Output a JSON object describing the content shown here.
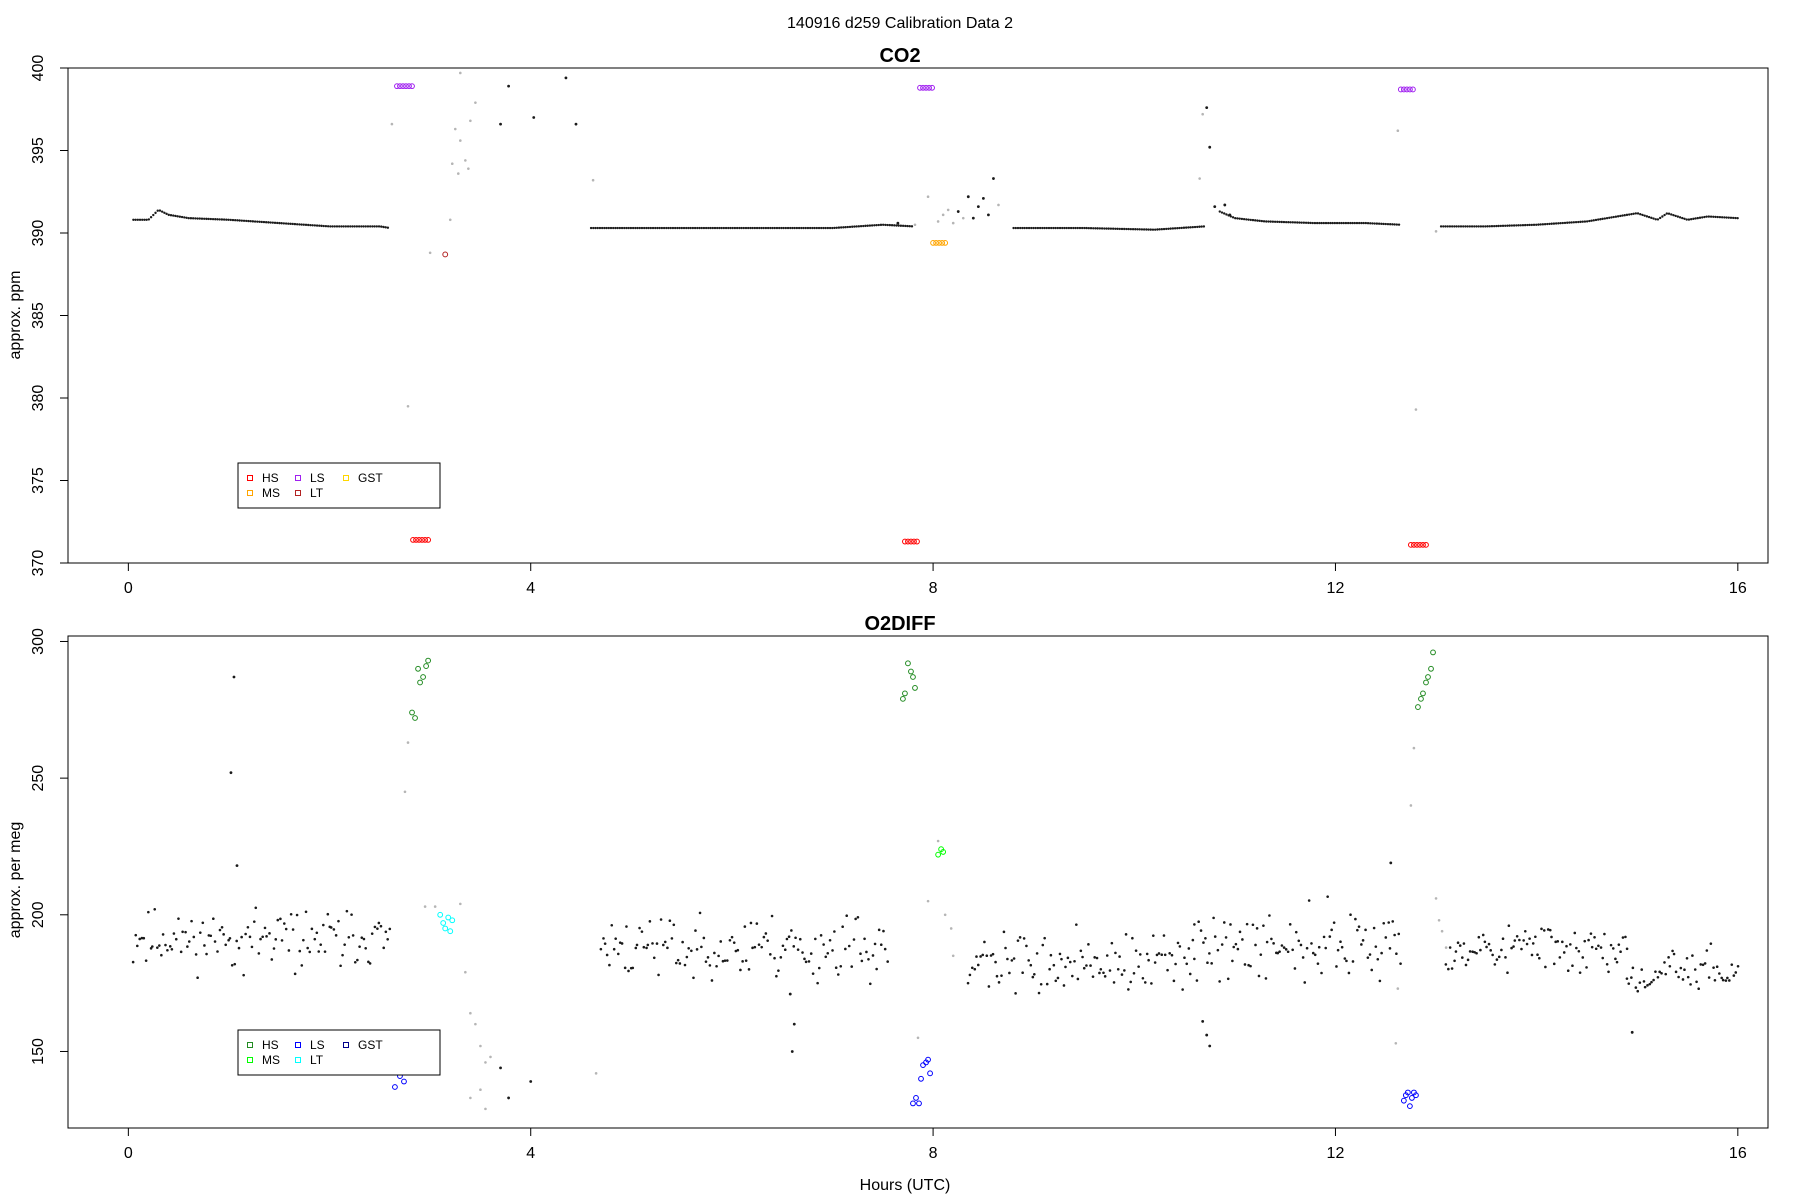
{
  "figure": {
    "title": "140916   d259   Calibration Data 2"
  },
  "chart_data": [
    {
      "type": "scatter",
      "title": "CO2",
      "xlabel": "",
      "ylabel": "approx. ppm",
      "xlim": [
        -0.6,
        16.3
      ],
      "ylim": [
        370,
        400
      ],
      "xticks": [
        0,
        4,
        8,
        12,
        16
      ],
      "yticks": [
        370,
        375,
        380,
        385,
        390,
        395,
        400
      ],
      "legend": {
        "position": "bottom-left",
        "entries": [
          {
            "name": "HS",
            "color": "#ff0000"
          },
          {
            "name": "MS",
            "color": "#ffa500"
          },
          {
            "name": "LS",
            "color": "#a020f0"
          },
          {
            "name": "LT",
            "color": "#b22222"
          },
          {
            "name": "GST",
            "color": "#ffd700"
          }
        ]
      },
      "series": [
        {
          "name": "HS",
          "color": "#ff0000",
          "points": [
            [
              2.83,
              371.4
            ],
            [
              2.86,
              371.4
            ],
            [
              2.89,
              371.4
            ],
            [
              2.92,
              371.4
            ],
            [
              2.95,
              371.4
            ],
            [
              2.98,
              371.4
            ],
            [
              7.72,
              371.3
            ],
            [
              7.75,
              371.3
            ],
            [
              7.78,
              371.3
            ],
            [
              7.81,
              371.3
            ],
            [
              7.84,
              371.3
            ],
            [
              12.75,
              371.1
            ],
            [
              12.78,
              371.1
            ],
            [
              12.81,
              371.1
            ],
            [
              12.84,
              371.1
            ],
            [
              12.87,
              371.1
            ],
            [
              12.9,
              371.1
            ]
          ]
        },
        {
          "name": "LS",
          "color": "#a020f0",
          "points": [
            [
              2.67,
              398.9
            ],
            [
              2.7,
              398.9
            ],
            [
              2.73,
              398.9
            ],
            [
              2.76,
              398.9
            ],
            [
              2.79,
              398.9
            ],
            [
              2.82,
              398.9
            ],
            [
              7.87,
              398.8
            ],
            [
              7.9,
              398.8
            ],
            [
              7.93,
              398.8
            ],
            [
              7.96,
              398.8
            ],
            [
              7.99,
              398.8
            ],
            [
              12.65,
              398.7
            ],
            [
              12.68,
              398.7
            ],
            [
              12.71,
              398.7
            ],
            [
              12.74,
              398.7
            ],
            [
              12.77,
              398.7
            ]
          ]
        },
        {
          "name": "MS",
          "color": "#ffa500",
          "points": [
            [
              8.0,
              389.4
            ],
            [
              8.03,
              389.4
            ],
            [
              8.06,
              389.4
            ],
            [
              8.09,
              389.4
            ],
            [
              8.12,
              389.4
            ]
          ]
        },
        {
          "name": "LT",
          "color": "#b22222",
          "points": [
            [
              3.15,
              388.7
            ]
          ]
        }
      ],
      "baseline_segments": [
        {
          "x": [
            0.05,
            0.2,
            0.3,
            0.4,
            0.6,
            1.0,
            1.5,
            2.0,
            2.5,
            2.6
          ],
          "y": [
            390.8,
            390.8,
            391.4,
            391.1,
            390.9,
            390.8,
            390.6,
            390.4,
            390.4,
            390.3
          ]
        },
        {
          "x": [
            4.6,
            5.5,
            6.5,
            7.0,
            7.5,
            7.8
          ],
          "y": [
            390.3,
            390.3,
            390.3,
            390.3,
            390.5,
            390.4
          ]
        },
        {
          "x": [
            8.8,
            9.5,
            10.2,
            10.7
          ],
          "y": [
            390.3,
            390.3,
            390.2,
            390.4
          ]
        },
        {
          "x": [
            10.85,
            11.0,
            11.3,
            11.8,
            12.3,
            12.65
          ],
          "y": [
            391.3,
            390.9,
            390.7,
            390.6,
            390.6,
            390.5
          ]
        },
        {
          "x": [
            13.05,
            13.5,
            14.0,
            14.5,
            14.8,
            15.0,
            15.2,
            15.3,
            15.5,
            15.7,
            16.0
          ],
          "y": [
            390.4,
            390.4,
            390.5,
            390.7,
            391.0,
            391.2,
            390.8,
            391.2,
            390.8,
            391.0,
            390.9
          ]
        }
      ],
      "black_points": [
        [
          3.78,
          398.9
        ],
        [
          4.35,
          399.4
        ],
        [
          4.03,
          397.0
        ],
        [
          4.45,
          396.6
        ],
        [
          3.7,
          396.6
        ],
        [
          10.72,
          397.6
        ],
        [
          10.75,
          395.2
        ],
        [
          8.6,
          393.3
        ],
        [
          8.5,
          392.1
        ],
        [
          8.35,
          392.2
        ],
        [
          8.45,
          391.6
        ],
        [
          8.55,
          391.1
        ],
        [
          8.25,
          391.3
        ],
        [
          10.8,
          391.6
        ],
        [
          10.9,
          391.7
        ],
        [
          10.95,
          391.1
        ],
        [
          7.65,
          390.6
        ],
        [
          8.4,
          390.9
        ]
      ],
      "gray_points": [
        [
          2.62,
          396.6
        ],
        [
          3.25,
          396.3
        ],
        [
          3.3,
          395.6
        ],
        [
          3.35,
          394.4
        ],
        [
          3.28,
          393.6
        ],
        [
          3.38,
          393.9
        ],
        [
          3.45,
          397.9
        ],
        [
          3.22,
          394.2
        ],
        [
          3.3,
          399.7
        ],
        [
          3.4,
          396.8
        ],
        [
          4.62,
          393.2
        ],
        [
          2.78,
          379.5
        ],
        [
          3.2,
          390.8
        ],
        [
          3.0,
          388.8
        ],
        [
          8.1,
          391.1
        ],
        [
          8.2,
          390.6
        ],
        [
          8.15,
          391.4
        ],
        [
          8.3,
          390.9
        ],
        [
          8.65,
          391.7
        ],
        [
          7.95,
          392.2
        ],
        [
          8.05,
          390.7
        ],
        [
          10.65,
          393.3
        ],
        [
          10.68,
          397.2
        ],
        [
          12.62,
          396.2
        ],
        [
          12.8,
          379.3
        ],
        [
          13.0,
          390.1
        ],
        [
          7.82,
          390.5
        ]
      ]
    },
    {
      "type": "scatter",
      "title": "O2DIFF",
      "xlabel": "Hours (UTC)",
      "ylabel": "approx. per meg",
      "xlim": [
        -0.6,
        16.3
      ],
      "ylim": [
        122,
        302
      ],
      "xticks": [
        0,
        4,
        8,
        12,
        16
      ],
      "yticks": [
        150,
        200,
        250,
        300
      ],
      "legend": {
        "position": "bottom-left",
        "entries": [
          {
            "name": "HS",
            "color": "#228b22"
          },
          {
            "name": "MS",
            "color": "#00ff00"
          },
          {
            "name": "LS",
            "color": "#0000ff"
          },
          {
            "name": "LT",
            "color": "#00ffff"
          },
          {
            "name": "GST",
            "color": "#00008b"
          }
        ]
      },
      "series": [
        {
          "name": "HS",
          "color": "#228b22",
          "points": [
            [
              2.82,
              274
            ],
            [
              2.85,
              272
            ],
            [
              2.88,
              290
            ],
            [
              2.9,
              285
            ],
            [
              2.93,
              287
            ],
            [
              2.96,
              291
            ],
            [
              2.98,
              293
            ],
            [
              7.7,
              279
            ],
            [
              7.72,
              281
            ],
            [
              7.75,
              292
            ],
            [
              7.78,
              289
            ],
            [
              7.8,
              287
            ],
            [
              7.82,
              283
            ],
            [
              12.82,
              276
            ],
            [
              12.85,
              279
            ],
            [
              12.87,
              281
            ],
            [
              12.9,
              285
            ],
            [
              12.92,
              287
            ],
            [
              12.95,
              290
            ],
            [
              12.97,
              296
            ]
          ]
        },
        {
          "name": "MS",
          "color": "#00ff00",
          "points": [
            [
              8.05,
              222
            ],
            [
              8.08,
              224
            ],
            [
              8.1,
              223
            ]
          ]
        },
        {
          "name": "LS",
          "color": "#0000ff",
          "points": [
            [
              2.65,
              137
            ],
            [
              2.7,
              141
            ],
            [
              2.74,
              139
            ],
            [
              7.8,
              131
            ],
            [
              7.83,
              133
            ],
            [
              7.86,
              131
            ],
            [
              7.88,
              140
            ],
            [
              7.9,
              145
            ],
            [
              7.93,
              146
            ],
            [
              7.95,
              147
            ],
            [
              7.97,
              142
            ],
            [
              12.68,
              132
            ],
            [
              12.7,
              134
            ],
            [
              12.72,
              135
            ],
            [
              12.74,
              130
            ],
            [
              12.76,
              133
            ],
            [
              12.78,
              135
            ],
            [
              12.8,
              134
            ]
          ]
        },
        {
          "name": "LT",
          "color": "#00ffff",
          "points": [
            [
              3.1,
              200
            ],
            [
              3.13,
              197
            ],
            [
              3.15,
              195
            ],
            [
              3.18,
              199
            ],
            [
              3.2,
              194
            ],
            [
              3.22,
              198
            ]
          ]
        }
      ],
      "black_points": [
        [
          1.05,
          287
        ],
        [
          1.02,
          252
        ],
        [
          1.08,
          218
        ],
        [
          12.55,
          219
        ],
        [
          10.68,
          161
        ],
        [
          10.72,
          156
        ],
        [
          10.75,
          152
        ],
        [
          14.95,
          157
        ],
        [
          6.6,
          150
        ],
        [
          6.62,
          160
        ],
        [
          6.58,
          171
        ],
        [
          4.0,
          139
        ],
        [
          3.7,
          144
        ],
        [
          3.78,
          133
        ]
      ],
      "gray_points": [
        [
          2.75,
          245
        ],
        [
          2.78,
          263
        ],
        [
          2.95,
          203
        ],
        [
          3.05,
          203
        ],
        [
          3.3,
          204
        ],
        [
          3.35,
          179
        ],
        [
          3.4,
          164
        ],
        [
          3.45,
          160
        ],
        [
          3.5,
          152
        ],
        [
          3.55,
          146
        ],
        [
          3.5,
          136
        ],
        [
          3.55,
          129
        ],
        [
          3.4,
          133
        ],
        [
          3.6,
          148
        ],
        [
          4.65,
          142
        ],
        [
          7.95,
          205
        ],
        [
          8.05,
          227
        ],
        [
          8.12,
          200
        ],
        [
          8.18,
          195
        ],
        [
          8.2,
          185
        ],
        [
          7.85,
          155
        ],
        [
          12.75,
          240
        ],
        [
          12.78,
          261
        ],
        [
          12.62,
          173
        ],
        [
          12.6,
          153
        ],
        [
          13.0,
          206
        ],
        [
          13.03,
          198
        ],
        [
          13.06,
          194
        ],
        [
          13.1,
          188
        ]
      ],
      "noise_segments": [
        {
          "x0": 0.05,
          "x1": 2.6,
          "mean": 191,
          "spread": 8,
          "n": 120,
          "seed": 11
        },
        {
          "x0": 4.7,
          "x1": 7.55,
          "mean": 188,
          "spread": 9,
          "n": 135,
          "seed": 23
        },
        {
          "x0": 8.35,
          "x1": 10.6,
          "mean": 182,
          "spread": 8,
          "n": 110,
          "seed": 37
        },
        {
          "x0": 10.6,
          "x1": 12.65,
          "mean": 189,
          "spread": 10,
          "n": 100,
          "seed": 41
        },
        {
          "x0": 13.1,
          "x1": 14.9,
          "mean": 188,
          "spread": 7,
          "n": 90,
          "seed": 53
        },
        {
          "x0": 14.9,
          "x1": 16.0,
          "mean": 179,
          "spread": 6,
          "n": 55,
          "seed": 67
        }
      ]
    }
  ]
}
